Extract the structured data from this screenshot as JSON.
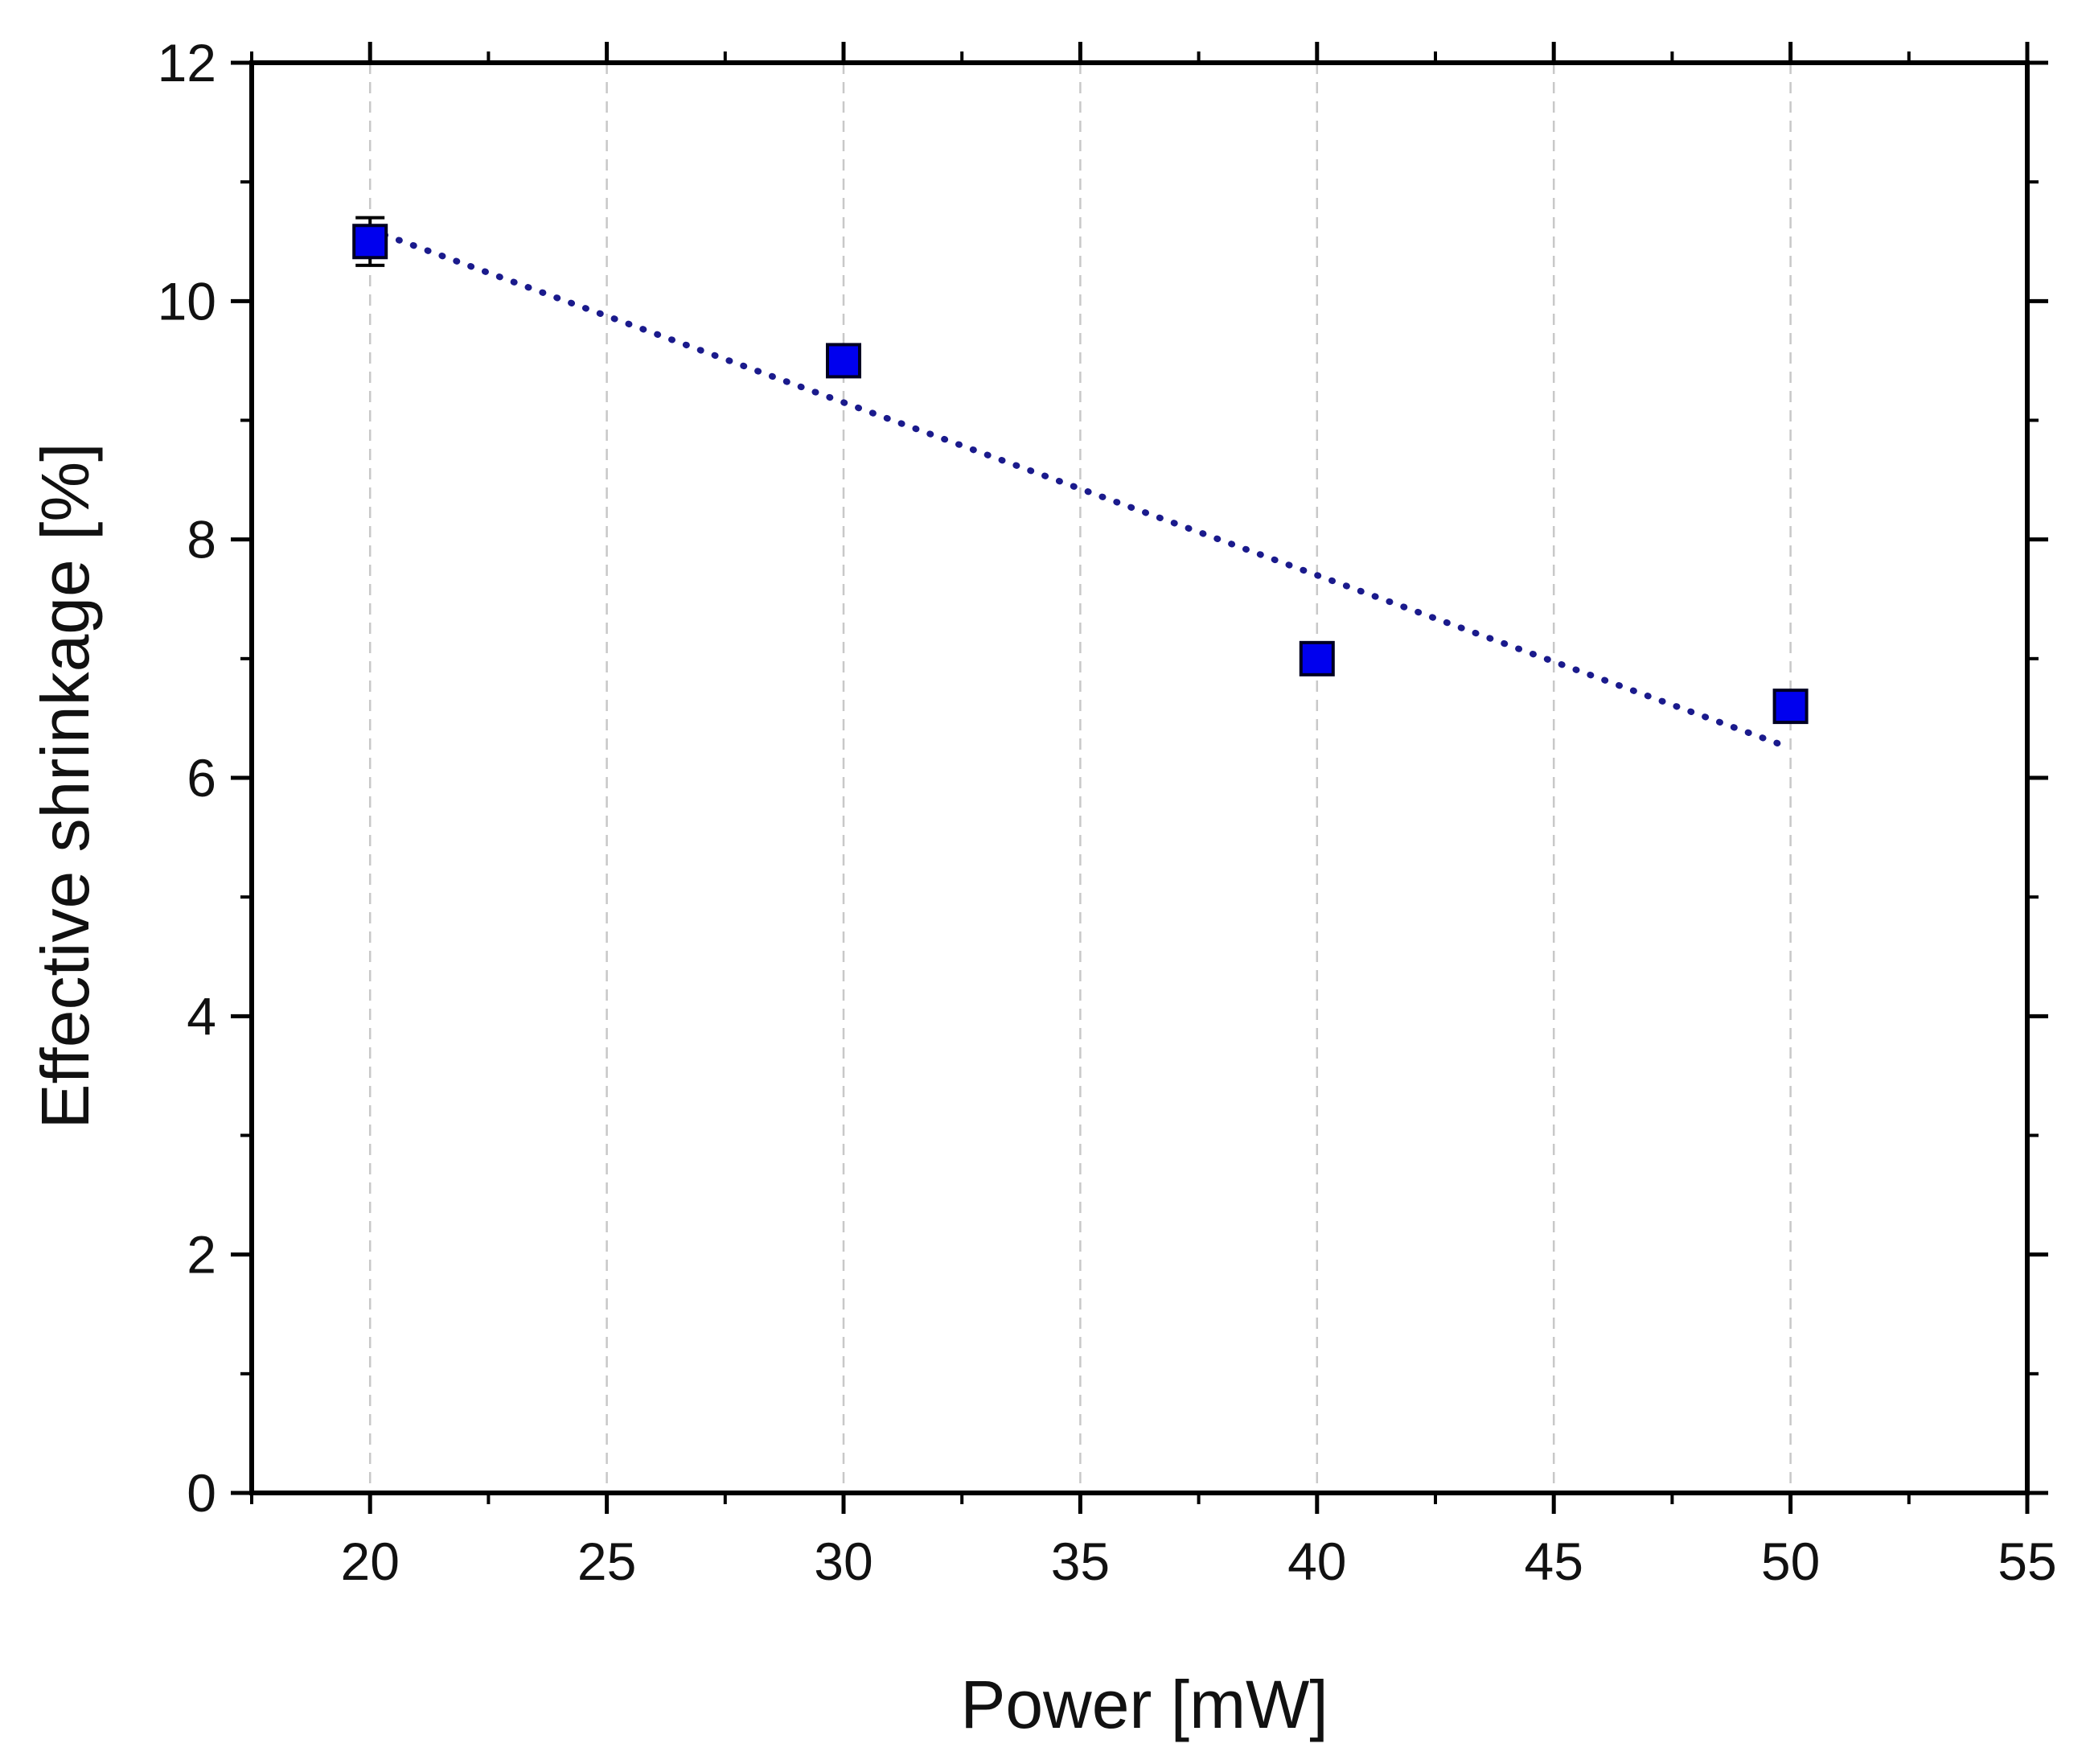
{
  "chart_data": {
    "type": "scatter",
    "title": "",
    "xlabel": "Power [mW]",
    "ylabel": "Effective shrinkage [%]",
    "xlim": [
      17.5,
      55
    ],
    "ylim": [
      0,
      12
    ],
    "x_ticks": [
      20,
      25,
      30,
      35,
      40,
      45,
      50,
      55
    ],
    "y_ticks": [
      0,
      2,
      4,
      6,
      8,
      10,
      12
    ],
    "grid": {
      "vertical": true,
      "horizontal": false,
      "style": "dashed",
      "color": "#c8c8c8"
    },
    "legend": "none",
    "series": [
      {
        "marker": "square",
        "color": "#0000ee",
        "points": [
          {
            "x": 20,
            "y": 10.5,
            "err": 0.2
          },
          {
            "x": 30,
            "y": 9.5,
            "err": 0.05
          },
          {
            "x": 40,
            "y": 7.0,
            "err": 0.05
          },
          {
            "x": 50,
            "y": 6.6,
            "err": 0.05
          }
        ]
      }
    ],
    "fit_line": {
      "style": "dotted",
      "color": "#1a1a8c",
      "x": [
        20,
        50
      ],
      "y": [
        10.6,
        6.25
      ]
    }
  }
}
